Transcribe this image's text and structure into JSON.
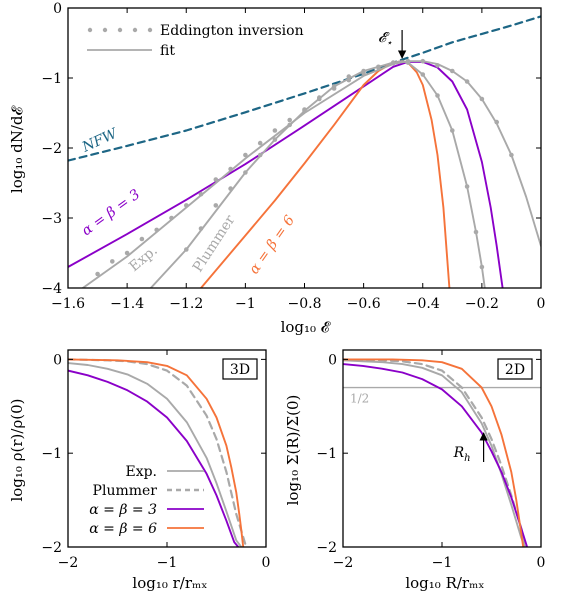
{
  "colors": {
    "purple": "#8a00c8",
    "orange": "#f5733a",
    "gray": "#a9a9a9",
    "nfw": "#1d6685"
  },
  "chart_data": [
    {
      "type": "line",
      "xlabel": "log₁₀ 𝓔",
      "ylabel": "log₁₀ dN/d𝓔",
      "xlim": [
        -1.6,
        0
      ],
      "ylim": [
        -4,
        0
      ],
      "xticks": [
        "−1.6",
        "−1.4",
        "−1.2",
        "−1",
        "−0.8",
        "−0.6",
        "−0.4",
        "−0.2",
        "0"
      ],
      "yticks": [
        "0",
        "−1",
        "−2",
        "−3",
        "−4"
      ],
      "legend_placement": "top-left",
      "legend": {
        "eddington": "Eddington inversion",
        "fit": "fit"
      },
      "annotations": {
        "nfw": "NFW",
        "a3": "α = β = 3",
        "a6": "α = β = 6",
        "exp": "Exp.",
        "plummer": "Plummer",
        "estar_main": "𝓔",
        "estar_sub": "⋆"
      },
      "estar_x": -0.47,
      "series": [
        {
          "name": "NFW",
          "style": "dashed",
          "color": "#1d6685",
          "x": [
            -1.6,
            -1.4,
            -1.2,
            -1.0,
            -0.8,
            -0.6,
            -0.5,
            -0.4,
            -0.3,
            -0.2,
            -0.1,
            0.0
          ],
          "y": [
            -2.18,
            -1.97,
            -1.75,
            -1.49,
            -1.22,
            -0.94,
            -0.78,
            -0.64,
            -0.49,
            -0.37,
            -0.25,
            -0.12
          ]
        },
        {
          "name": "α = β = 3",
          "color": "#8a00c8",
          "x": [
            -1.6,
            -1.4,
            -1.2,
            -1.0,
            -0.8,
            -0.6,
            -0.5,
            -0.45,
            -0.4,
            -0.35,
            -0.3,
            -0.25,
            -0.2,
            -0.17,
            -0.15,
            -0.13
          ],
          "y": [
            -3.7,
            -3.23,
            -2.74,
            -2.23,
            -1.68,
            -1.12,
            -0.84,
            -0.77,
            -0.77,
            -0.85,
            -1.05,
            -1.45,
            -2.2,
            -2.85,
            -3.4,
            -4.0
          ]
        },
        {
          "name": "α = β = 6",
          "color": "#f5733a",
          "x": [
            -1.15,
            -1.0,
            -0.9,
            -0.8,
            -0.7,
            -0.6,
            -0.55,
            -0.5,
            -0.47,
            -0.45,
            -0.42,
            -0.4,
            -0.37,
            -0.35,
            -0.33,
            -0.31
          ],
          "y": [
            -4.0,
            -3.25,
            -2.75,
            -2.22,
            -1.67,
            -1.1,
            -0.9,
            -0.78,
            -0.76,
            -0.78,
            -0.92,
            -1.1,
            -1.6,
            -2.1,
            -2.85,
            -4.0
          ]
        },
        {
          "name": "Exp. fit",
          "color": "#a9a9a9",
          "x": [
            -1.55,
            -1.4,
            -1.2,
            -1.0,
            -0.8,
            -0.6,
            -0.5,
            -0.45,
            -0.4,
            -0.35,
            -0.3,
            -0.25,
            -0.2,
            -0.15,
            -0.1,
            -0.05,
            0.0
          ],
          "y": [
            -4.0,
            -3.55,
            -2.85,
            -2.15,
            -1.5,
            -0.97,
            -0.8,
            -0.76,
            -0.76,
            -0.8,
            -0.9,
            -1.05,
            -1.3,
            -1.65,
            -2.1,
            -2.7,
            -3.4
          ]
        },
        {
          "name": "Plummer fit",
          "color": "#a9a9a9",
          "x": [
            -1.32,
            -1.2,
            -1.0,
            -0.9,
            -0.8,
            -0.7,
            -0.6,
            -0.5,
            -0.47,
            -0.45,
            -0.4,
            -0.35,
            -0.3,
            -0.25,
            -0.22,
            -0.2,
            -0.19
          ],
          "y": [
            -4.0,
            -3.45,
            -2.35,
            -1.88,
            -1.47,
            -1.12,
            -0.9,
            -0.78,
            -0.76,
            -0.78,
            -0.95,
            -1.25,
            -1.75,
            -2.55,
            -3.2,
            -3.7,
            -4.0
          ]
        },
        {
          "name": "Eddington inversion (Exp.)",
          "style": "points",
          "color": "#a9a9a9",
          "x": [
            -1.5,
            -1.45,
            -1.4,
            -1.35,
            -1.3,
            -1.25,
            -1.2,
            -1.15,
            -1.1,
            -1.05,
            -1.0,
            -0.95,
            -0.9,
            -0.85,
            -0.8,
            -0.75,
            -0.7,
            -0.65,
            -0.6,
            -0.55,
            -0.5,
            -0.45,
            -0.4,
            -0.35,
            -0.3,
            -0.25,
            -0.2,
            -0.15,
            -0.1
          ],
          "y": [
            -3.8,
            -3.62,
            -3.5,
            -3.3,
            -3.17,
            -3.0,
            -2.82,
            -2.66,
            -2.45,
            -2.3,
            -2.1,
            -1.93,
            -1.75,
            -1.6,
            -1.45,
            -1.3,
            -1.15,
            -1.03,
            -0.93,
            -0.85,
            -0.79,
            -0.76,
            -0.76,
            -0.82,
            -0.9,
            -1.05,
            -1.3,
            -1.63,
            -2.1
          ]
        },
        {
          "name": "Eddington inversion (Plummer)",
          "style": "points",
          "color": "#a9a9a9",
          "x": [
            -1.2,
            -1.15,
            -1.1,
            -1.05,
            -1.0,
            -0.95,
            -0.9,
            -0.85,
            -0.8,
            -0.75,
            -0.7,
            -0.65,
            -0.6,
            -0.55,
            -0.5,
            -0.45,
            -0.4,
            -0.35,
            -0.3,
            -0.25,
            -0.22,
            -0.2
          ],
          "y": [
            -3.45,
            -3.15,
            -2.82,
            -2.58,
            -2.35,
            -2.1,
            -1.88,
            -1.67,
            -1.47,
            -1.28,
            -1.12,
            -0.98,
            -0.9,
            -0.84,
            -0.78,
            -0.78,
            -0.95,
            -1.25,
            -1.75,
            -2.55,
            -3.2,
            -3.7
          ]
        }
      ]
    },
    {
      "type": "line",
      "label": "3D",
      "xlabel": "log₁₀ r/rₘₓ",
      "ylabel": "log₁₀ ρ(r)/ρ(0)",
      "xlim": [
        -2,
        0
      ],
      "ylim": [
        -2,
        0.1
      ],
      "xticks": [
        "−2",
        "−1",
        "0"
      ],
      "yticks": [
        "0",
        "−1",
        "−2"
      ],
      "legend_placement": "bottom-left",
      "legend": {
        "exp": "Exp.",
        "plummer": "Plummer",
        "a3": "α = β = 3",
        "a6": "α = β = 6"
      },
      "series": [
        {
          "name": "Exp.",
          "color": "#a9a9a9",
          "x": [
            -2,
            -1.8,
            -1.6,
            -1.4,
            -1.2,
            -1.0,
            -0.8,
            -0.6,
            -0.5,
            -0.4,
            -0.3,
            -0.25
          ],
          "y": [
            -0.04,
            -0.06,
            -0.1,
            -0.16,
            -0.26,
            -0.42,
            -0.67,
            -1.05,
            -1.32,
            -1.62,
            -1.93,
            -2.0
          ]
        },
        {
          "name": "Plummer",
          "style": "dashed",
          "color": "#a9a9a9",
          "x": [
            -2,
            -1.6,
            -1.4,
            -1.2,
            -1.0,
            -0.8,
            -0.6,
            -0.5,
            -0.4,
            -0.3,
            -0.2
          ],
          "y": [
            0.0,
            -0.01,
            -0.02,
            -0.05,
            -0.12,
            -0.28,
            -0.6,
            -0.85,
            -1.2,
            -1.65,
            -2.0
          ]
        },
        {
          "name": "α = β = 3",
          "color": "#8a00c8",
          "x": [
            -2,
            -1.8,
            -1.6,
            -1.4,
            -1.2,
            -1.0,
            -0.8,
            -0.6,
            -0.5,
            -0.4,
            -0.32,
            -0.28
          ],
          "y": [
            -0.12,
            -0.17,
            -0.24,
            -0.33,
            -0.45,
            -0.62,
            -0.87,
            -1.22,
            -1.45,
            -1.72,
            -1.95,
            -2.0
          ]
        },
        {
          "name": "α = β = 6",
          "color": "#f5733a",
          "x": [
            -2,
            -1.5,
            -1.2,
            -1.0,
            -0.8,
            -0.6,
            -0.5,
            -0.4,
            -0.35,
            -0.3,
            -0.27,
            -0.25,
            -0.23
          ],
          "y": [
            0.0,
            -0.01,
            -0.03,
            -0.07,
            -0.17,
            -0.42,
            -0.62,
            -0.92,
            -1.15,
            -1.42,
            -1.65,
            -1.82,
            -2.0
          ]
        }
      ]
    },
    {
      "type": "line",
      "label": "2D",
      "xlabel": "log₁₀ R/rₘₓ",
      "ylabel": "log₁₀ Σ(R)/Σ(0)",
      "xlim": [
        -2,
        0
      ],
      "ylim": [
        -2,
        0.1
      ],
      "xticks": [
        "−2",
        "−1",
        "0"
      ],
      "yticks": [
        "0",
        "−1",
        "−2"
      ],
      "annotations": {
        "half": "1/2",
        "rh_main": "R",
        "rh_sub": "h"
      },
      "half_level": -0.301,
      "rh_x": -0.58,
      "series": [
        {
          "name": "Exp.",
          "color": "#a9a9a9",
          "x": [
            -2,
            -1.8,
            -1.6,
            -1.4,
            -1.2,
            -1.0,
            -0.8,
            -0.6,
            -0.5,
            -0.4,
            -0.3,
            -0.2,
            -0.16
          ],
          "y": [
            -0.01,
            -0.02,
            -0.03,
            -0.05,
            -0.09,
            -0.17,
            -0.35,
            -0.68,
            -0.92,
            -1.22,
            -1.55,
            -1.9,
            -2.0
          ]
        },
        {
          "name": "Plummer",
          "style": "dashed",
          "color": "#a9a9a9",
          "x": [
            -2,
            -1.6,
            -1.4,
            -1.2,
            -1.0,
            -0.8,
            -0.6,
            -0.5,
            -0.4,
            -0.3,
            -0.2,
            -0.15
          ],
          "y": [
            0.0,
            -0.01,
            -0.02,
            -0.05,
            -0.12,
            -0.3,
            -0.62,
            -0.85,
            -1.13,
            -1.45,
            -1.8,
            -2.0
          ]
        },
        {
          "name": "α = β = 3",
          "color": "#8a00c8",
          "x": [
            -2,
            -1.8,
            -1.6,
            -1.4,
            -1.2,
            -1.0,
            -0.8,
            -0.6,
            -0.5,
            -0.4,
            -0.3,
            -0.2,
            -0.14
          ],
          "y": [
            -0.05,
            -0.07,
            -0.1,
            -0.14,
            -0.21,
            -0.32,
            -0.5,
            -0.78,
            -0.98,
            -1.2,
            -1.47,
            -1.8,
            -2.0
          ]
        },
        {
          "name": "α = β = 6",
          "color": "#f5733a",
          "x": [
            -2,
            -1.5,
            -1.2,
            -1.0,
            -0.8,
            -0.6,
            -0.5,
            -0.4,
            -0.3,
            -0.25,
            -0.2,
            -0.18
          ],
          "y": [
            0.0,
            0.0,
            -0.01,
            -0.03,
            -0.1,
            -0.3,
            -0.5,
            -0.8,
            -1.2,
            -1.5,
            -1.85,
            -2.0
          ]
        }
      ]
    }
  ]
}
